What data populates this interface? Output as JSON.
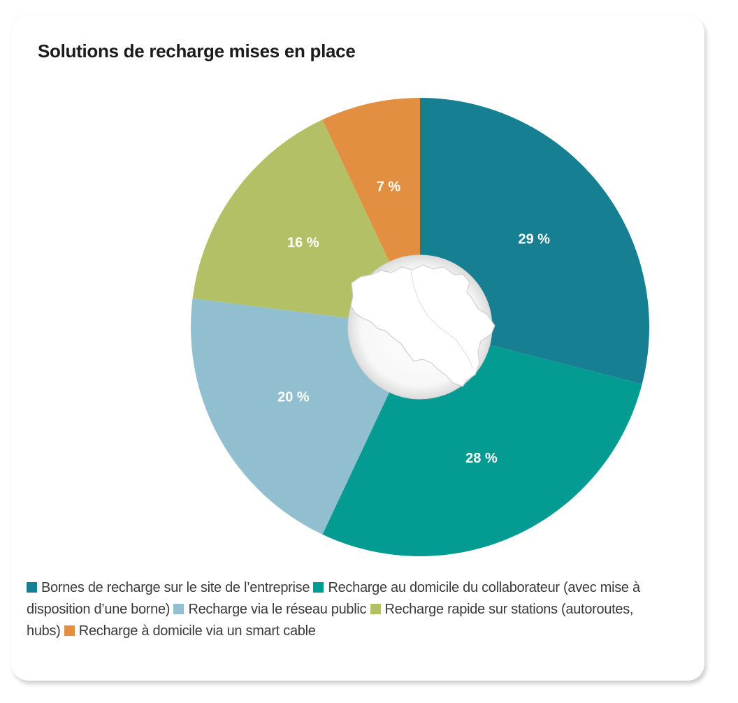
{
  "chart_data": {
    "type": "pie",
    "title": "Solutions de recharge mises en place",
    "legend_position": "bottom",
    "slices": [
      {
        "label": "Bornes de recharge sur le site de l’entreprise",
        "value": 29,
        "display": "29 %",
        "color": "#167f92"
      },
      {
        "label": "Recharge au domicile du collaborateur (avec mise à disposition d’une borne)",
        "value": 28,
        "display": "28 %",
        "color": "#049b93"
      },
      {
        "label": "Recharge via le réseau public",
        "value": 20,
        "display": "20 %",
        "color": "#91bfd0"
      },
      {
        "label": "Recharge rapide sur stations (autoroutes, hubs)",
        "value": 16,
        "display": "16 %",
        "color": "#b4c065"
      },
      {
        "label": "Recharge à domicile via un smart cable",
        "value": 7,
        "display": "7 %",
        "color": "#e38f41"
      }
    ]
  },
  "center_icon": "belgium-map-icon"
}
